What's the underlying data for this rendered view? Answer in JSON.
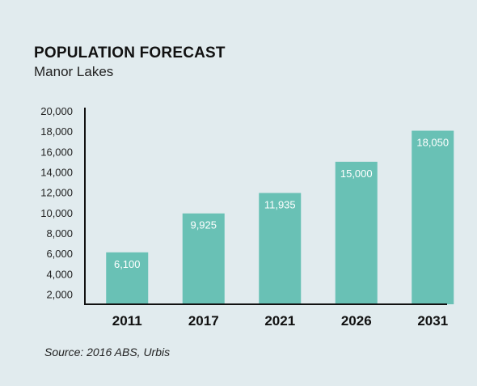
{
  "header": {
    "title": "POPULATION FORECAST",
    "subtitle": "Manor Lakes"
  },
  "footer": {
    "source": "Source: 2016 ABS, Urbis"
  },
  "colors": {
    "bar": "#69c1b5",
    "axis": "#111111",
    "background": "#e1ebee",
    "bar_label": "#ffffff"
  },
  "chart_data": {
    "type": "bar",
    "title": "POPULATION FORECAST",
    "subtitle": "Manor Lakes",
    "categories": [
      "2011",
      "2017",
      "2021",
      "2026",
      "2031"
    ],
    "values": [
      6100,
      9925,
      11935,
      15000,
      18050
    ],
    "value_labels": [
      "6,100",
      "9,925",
      "11,935",
      "15,000",
      "18,050"
    ],
    "y_ticks": [
      2000,
      4000,
      6000,
      8000,
      10000,
      12000,
      14000,
      16000,
      18000,
      20000
    ],
    "y_tick_labels": [
      "2,000",
      "4,000",
      "6,000",
      "8,000",
      "10,000",
      "12,000",
      "14,000",
      "16,000",
      "18,000",
      "20,000"
    ],
    "ylim": [
      1000,
      20000
    ],
    "xlabel": "",
    "ylabel": "",
    "grid": false,
    "legend": "none"
  }
}
